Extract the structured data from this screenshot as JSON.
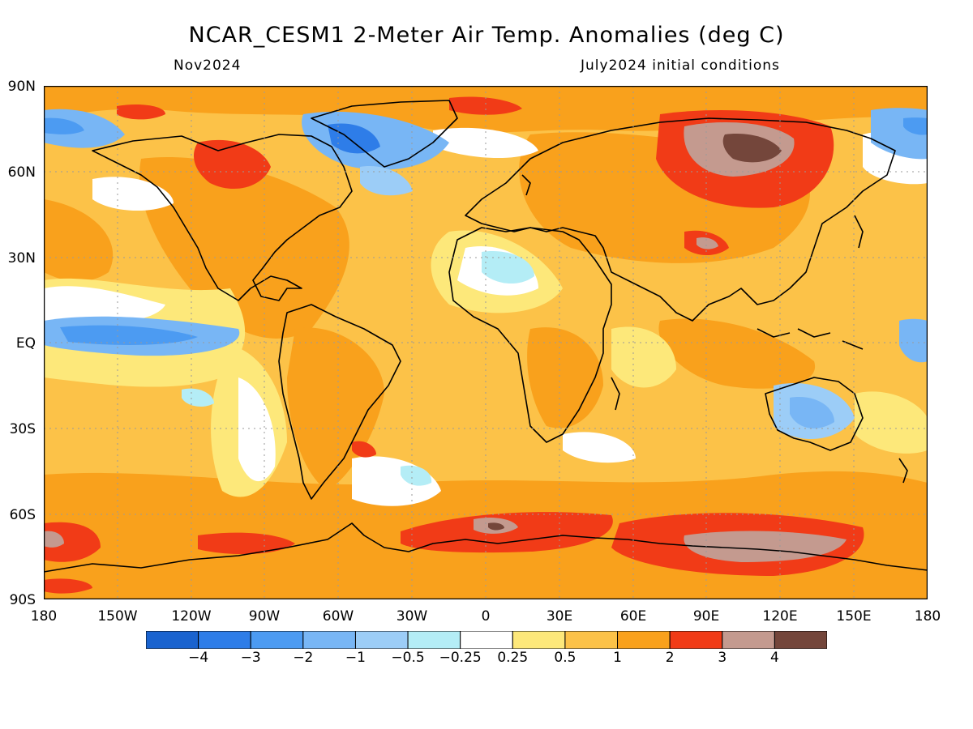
{
  "title": "NCAR_CESM1 2-Meter Air Temp. Anomalies (deg C)",
  "subtitle_left": "Nov2024",
  "subtitle_right": "July2024 initial conditions",
  "lat_ticks": [
    "90N",
    "60N",
    "30N",
    "EQ",
    "30S",
    "60S",
    "90S"
  ],
  "lon_ticks": [
    "180",
    "150W",
    "120W",
    "90W",
    "60W",
    "30W",
    "0",
    "30E",
    "60E",
    "90E",
    "120E",
    "150E",
    "180"
  ],
  "legend": {
    "colors": [
      "#1a63cf",
      "#2e7de8",
      "#4c9bf2",
      "#78b6f5",
      "#9ccdf7",
      "#b4edf6",
      "#ffffff",
      "#fde87a",
      "#fcc248",
      "#f9a11c",
      "#f13b17",
      "#c49a8f",
      "#74463b"
    ],
    "labels": [
      "-4",
      "-3",
      "-2",
      "-1",
      "-0.5",
      "-0.25",
      "0.25",
      "0.5",
      "1",
      "2",
      "3",
      "4"
    ]
  },
  "colors": {
    "base": "#fcc248",
    "frame": "#000000",
    "grid": "#9a9a9a"
  },
  "regions": [
    {
      "name": "north-pacific-arctic-cold",
      "color": "#78b6f5"
    },
    {
      "name": "north-pacific-cold-core",
      "color": "#4c9bf2"
    },
    {
      "name": "greenland-cold",
      "color": "#78b6f5"
    },
    {
      "name": "greenland-cold-core",
      "color": "#2e7de8"
    },
    {
      "name": "canada-warm",
      "color": "#f13b17"
    },
    {
      "name": "siberia-warm",
      "color": "#f13b17"
    },
    {
      "name": "siberia-hot",
      "color": "#c49a8f"
    },
    {
      "name": "siberia-hot-core",
      "color": "#74463b"
    },
    {
      "name": "equatorial-pacific-cold",
      "color": "#78b6f5"
    },
    {
      "name": "equatorial-pacific-cold-core",
      "color": "#4c9bf2"
    },
    {
      "name": "australia-cold",
      "color": "#9ccdf7"
    },
    {
      "name": "southern-ocean-warm-east",
      "color": "#f13b17"
    },
    {
      "name": "southern-ocean-warm-atlantic",
      "color": "#f13b17"
    },
    {
      "name": "southern-ocean-hot-east",
      "color": "#c49a8f"
    }
  ]
}
